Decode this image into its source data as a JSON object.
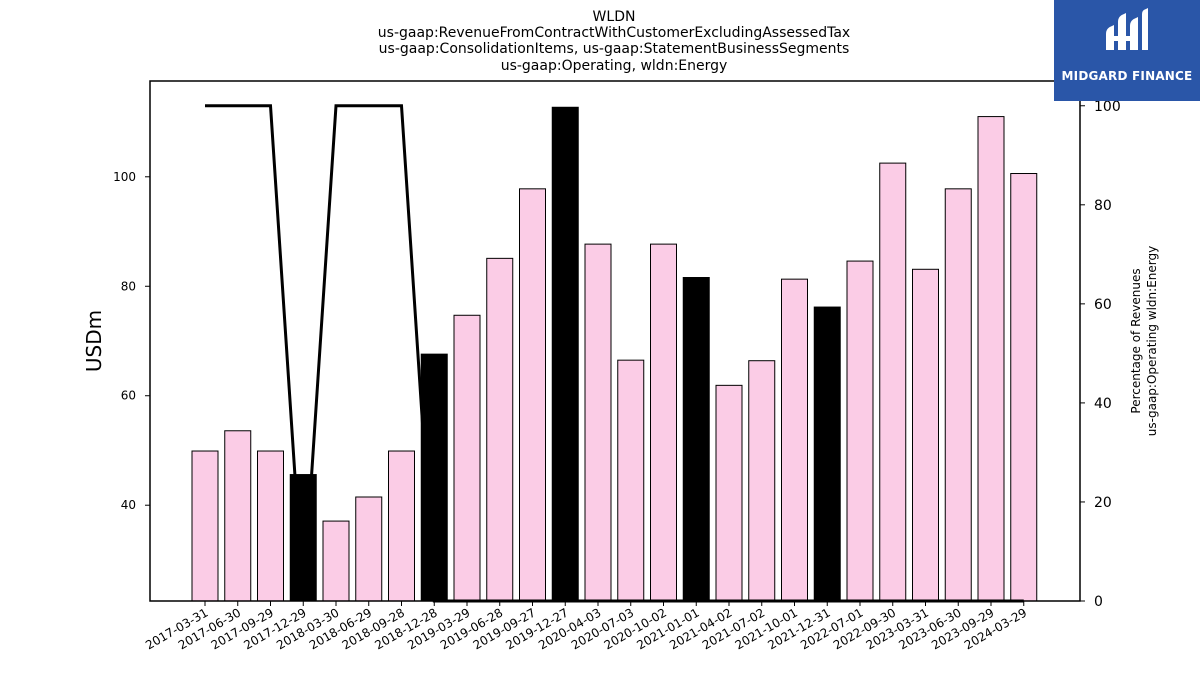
{
  "chart_data": {
    "type": "bar",
    "title": [
      "WLDN",
      "us-gaap:RevenueFromContractWithCustomerExcludingAssessedTax",
      "us-gaap:ConsolidationItems, us-gaap:StatementBusinessSegments",
      "us-gaap:Operating, wldn:Energy"
    ],
    "ylabel": "USDm",
    "y2label": [
      "Percentage of Revenues",
      "us-gaap:Operating wldn:Energy"
    ],
    "ylim": [
      22.5,
      117.5
    ],
    "y2lim": [
      0,
      105
    ],
    "yticks": [
      40,
      60,
      80,
      100
    ],
    "y2ticks": [
      0,
      20,
      40,
      60,
      80,
      100
    ],
    "categories": [
      "2017-03-31",
      "2017-06-30",
      "2017-09-29",
      "2017-12-29",
      "2018-03-30",
      "2018-06-29",
      "2018-09-28",
      "2018-12-28",
      "2019-03-29",
      "2019-06-28",
      "2019-09-27",
      "2019-12-27",
      "2020-04-03",
      "2020-07-03",
      "2020-10-02",
      "2021-01-01",
      "2021-04-02",
      "2021-07-02",
      "2021-10-01",
      "2021-12-31",
      "2022-07-01",
      "2022-09-30",
      "2023-03-31",
      "2023-06-30",
      "2023-09-29",
      "2024-03-29"
    ],
    "series": [
      {
        "kind": "bar",
        "values": [
          49.9,
          53.6,
          49.9,
          45.6,
          37.1,
          41.5,
          49.9,
          67.6,
          74.7,
          85.1,
          97.8,
          112.7,
          87.7,
          66.5,
          87.7,
          81.6,
          61.9,
          66.4,
          81.3,
          76.2,
          84.6,
          102.5,
          83.1,
          97.8,
          111.0,
          100.6
        ],
        "highlight": [
          false,
          false,
          false,
          true,
          false,
          false,
          false,
          true,
          false,
          false,
          false,
          true,
          false,
          false,
          false,
          true,
          false,
          false,
          false,
          true,
          false,
          false,
          false,
          false,
          false,
          false
        ]
      },
      {
        "kind": "line",
        "axis": "right",
        "values": [
          100,
          100,
          100,
          0,
          100,
          100,
          100,
          0,
          0,
          0,
          0,
          0,
          0,
          0,
          0,
          0,
          0,
          0,
          0,
          0,
          0,
          0,
          0,
          0,
          0,
          0
        ]
      }
    ],
    "colors": {
      "bar": "#fbcce6",
      "bar_highlight": "#000000",
      "line": "#000000"
    },
    "grid": false
  },
  "logo": {
    "text": "MIDGARD FINANCE",
    "background": "#2a56a8"
  }
}
